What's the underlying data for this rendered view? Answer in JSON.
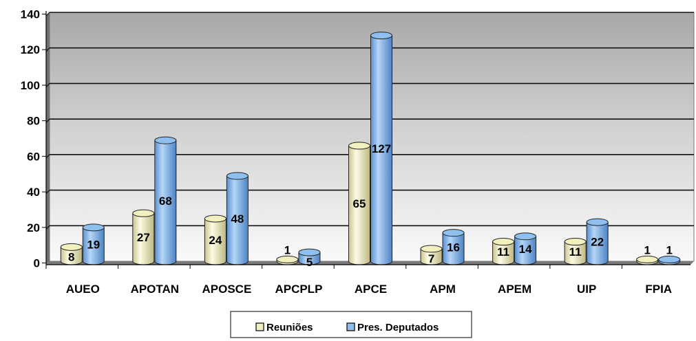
{
  "chart_data": {
    "type": "bar",
    "categories": [
      "AUEO",
      "APOTAN",
      "APOSCE",
      "APCPLP",
      "APCE",
      "APM",
      "APEM",
      "UIP",
      "FPIA"
    ],
    "series": [
      {
        "name": "Reuniões",
        "values": [
          8,
          27,
          24,
          1,
          65,
          7,
          11,
          11,
          1
        ],
        "color": "#f3f0c0"
      },
      {
        "name": "Pres. Deputados",
        "values": [
          19,
          68,
          48,
          5,
          127,
          16,
          14,
          22,
          1
        ],
        "color": "#8fbfee"
      }
    ],
    "ylim": [
      0,
      140
    ],
    "yticks": [
      0,
      20,
      40,
      60,
      80,
      100,
      120,
      140
    ],
    "grid": true,
    "legend": "bottom",
    "style": "3d-cylinder"
  }
}
